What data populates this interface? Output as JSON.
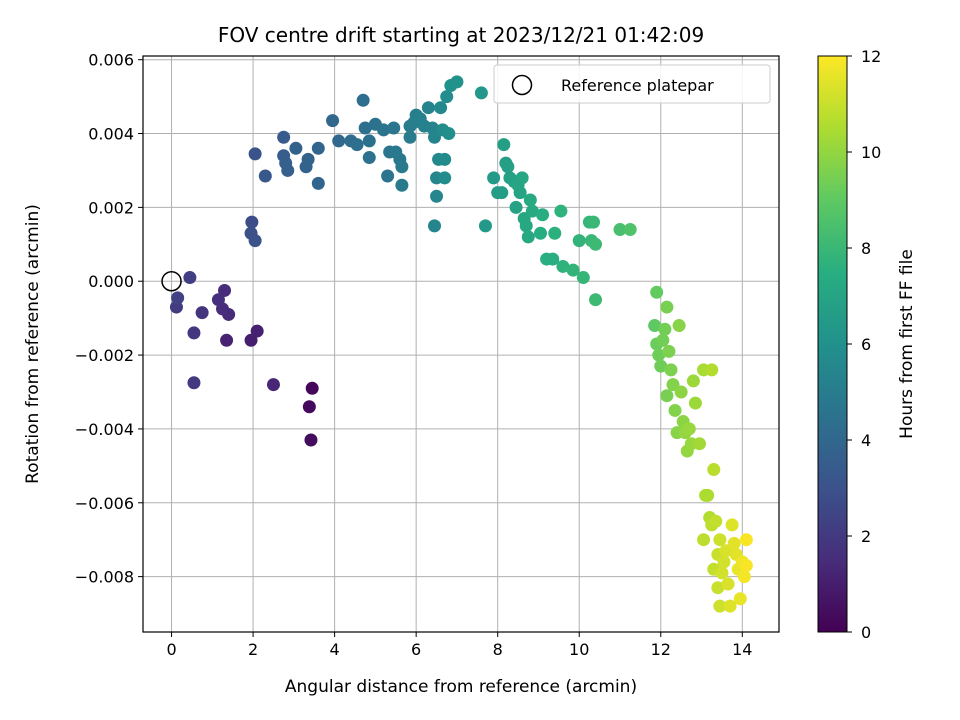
{
  "chart_data": {
    "type": "scatter",
    "title": "FOV centre drift starting at 2023/12/21 01:42:09",
    "xlabel": "Angular distance from reference (arcmin)",
    "ylabel": "Rotation from reference (arcmin)",
    "xlim": [
      -0.7,
      14.9
    ],
    "ylim": [
      -0.0095,
      0.0061
    ],
    "xticks": [
      0,
      2,
      4,
      6,
      8,
      10,
      12,
      14
    ],
    "xtick_labels": [
      "0",
      "2",
      "4",
      "6",
      "8",
      "10",
      "12",
      "14"
    ],
    "yticks": [
      0.006,
      0.004,
      0.002,
      0.0,
      -0.002,
      -0.004,
      -0.006,
      -0.008
    ],
    "ytick_labels": [
      "0.006",
      "0.004",
      "0.002",
      "0.000",
      "−0.002",
      "−0.004",
      "−0.006",
      "−0.008"
    ],
    "grid": true,
    "legend": {
      "placement": "upper right",
      "entries": [
        "Reference platepar"
      ]
    },
    "reference_point": {
      "x": 0,
      "y": 0
    },
    "colorbar": {
      "label": "Hours from first FF file",
      "range": [
        0,
        12
      ],
      "ticks": [
        0,
        2,
        4,
        6,
        8,
        10,
        12
      ],
      "tick_labels": [
        "0",
        "2",
        "4",
        "6",
        "8",
        "10",
        "12"
      ],
      "colormap": "viridis"
    },
    "series": [
      {
        "marker": "filled circle colored by hours",
        "points": [
          {
            "x": 3.45,
            "y": -0.0029,
            "c": 0.2
          },
          {
            "x": 3.38,
            "y": -0.0034,
            "c": 0.3
          },
          {
            "x": 3.42,
            "y": -0.0043,
            "c": 0.4
          },
          {
            "x": 1.95,
            "y": -0.0016,
            "c": 1.0
          },
          {
            "x": 2.1,
            "y": -0.00135,
            "c": 1.1
          },
          {
            "x": 1.35,
            "y": -0.0016,
            "c": 1.2
          },
          {
            "x": 2.5,
            "y": -0.0028,
            "c": 1.3
          },
          {
            "x": 1.4,
            "y": -0.0009,
            "c": 1.4
          },
          {
            "x": 1.25,
            "y": -0.00075,
            "c": 1.5
          },
          {
            "x": 1.15,
            "y": -0.0005,
            "c": 1.6
          },
          {
            "x": 1.3,
            "y": -0.00025,
            "c": 1.5
          },
          {
            "x": 0.75,
            "y": -0.00085,
            "c": 1.8
          },
          {
            "x": 0.55,
            "y": -0.0014,
            "c": 1.9
          },
          {
            "x": 0.55,
            "y": -0.00275,
            "c": 2.0
          },
          {
            "x": 0.45,
            "y": 0.0001,
            "c": 2.2
          },
          {
            "x": 0.15,
            "y": -0.00045,
            "c": 2.3
          },
          {
            "x": 0.12,
            "y": -0.0007,
            "c": 2.1
          },
          {
            "x": 1.97,
            "y": 0.0016,
            "c": 2.8
          },
          {
            "x": 1.95,
            "y": 0.0013,
            "c": 2.9
          },
          {
            "x": 2.05,
            "y": 0.0011,
            "c": 3.0
          },
          {
            "x": 2.05,
            "y": 0.00345,
            "c": 3.1
          },
          {
            "x": 2.3,
            "y": 0.00285,
            "c": 3.3
          },
          {
            "x": 2.75,
            "y": 0.0039,
            "c": 3.4
          },
          {
            "x": 2.75,
            "y": 0.0034,
            "c": 3.5
          },
          {
            "x": 2.8,
            "y": 0.0032,
            "c": 3.6
          },
          {
            "x": 2.85,
            "y": 0.003,
            "c": 3.6
          },
          {
            "x": 3.05,
            "y": 0.0036,
            "c": 3.7
          },
          {
            "x": 3.3,
            "y": 0.0031,
            "c": 3.8
          },
          {
            "x": 3.35,
            "y": 0.0033,
            "c": 3.8
          },
          {
            "x": 3.6,
            "y": 0.0036,
            "c": 3.9
          },
          {
            "x": 3.6,
            "y": 0.00265,
            "c": 3.9
          },
          {
            "x": 3.95,
            "y": 0.00435,
            "c": 4.0
          },
          {
            "x": 4.1,
            "y": 0.0038,
            "c": 4.1
          },
          {
            "x": 4.4,
            "y": 0.0038,
            "c": 4.2
          },
          {
            "x": 4.55,
            "y": 0.0037,
            "c": 4.3
          },
          {
            "x": 4.7,
            "y": 0.0049,
            "c": 4.3
          },
          {
            "x": 4.75,
            "y": 0.00415,
            "c": 4.4
          },
          {
            "x": 4.85,
            "y": 0.0038,
            "c": 4.4
          },
          {
            "x": 4.85,
            "y": 0.00335,
            "c": 4.5
          },
          {
            "x": 5.0,
            "y": 0.00425,
            "c": 4.5
          },
          {
            "x": 5.2,
            "y": 0.0041,
            "c": 4.6
          },
          {
            "x": 5.3,
            "y": 0.00285,
            "c": 4.6
          },
          {
            "x": 5.35,
            "y": 0.0035,
            "c": 4.7
          },
          {
            "x": 5.45,
            "y": 0.00415,
            "c": 4.7
          },
          {
            "x": 5.5,
            "y": 0.0035,
            "c": 4.8
          },
          {
            "x": 5.6,
            "y": 0.0033,
            "c": 4.8
          },
          {
            "x": 5.65,
            "y": 0.0031,
            "c": 4.9
          },
          {
            "x": 5.65,
            "y": 0.0026,
            "c": 4.9
          },
          {
            "x": 5.85,
            "y": 0.0042,
            "c": 5.0
          },
          {
            "x": 5.85,
            "y": 0.0039,
            "c": 5.0
          },
          {
            "x": 5.95,
            "y": 0.0043,
            "c": 5.1
          },
          {
            "x": 6.0,
            "y": 0.0045,
            "c": 5.1
          },
          {
            "x": 6.1,
            "y": 0.0044,
            "c": 5.2
          },
          {
            "x": 6.2,
            "y": 0.0042,
            "c": 5.2
          },
          {
            "x": 6.3,
            "y": 0.0047,
            "c": 5.3
          },
          {
            "x": 6.4,
            "y": 0.00415,
            "c": 5.3
          },
          {
            "x": 6.45,
            "y": 0.0039,
            "c": 5.4
          },
          {
            "x": 6.45,
            "y": 0.0015,
            "c": 5.4
          },
          {
            "x": 6.5,
            "y": 0.0028,
            "c": 5.5
          },
          {
            "x": 6.5,
            "y": 0.0023,
            "c": 5.5
          },
          {
            "x": 6.55,
            "y": 0.0033,
            "c": 5.6
          },
          {
            "x": 6.6,
            "y": 0.0047,
            "c": 5.6
          },
          {
            "x": 6.65,
            "y": 0.0041,
            "c": 5.7
          },
          {
            "x": 6.7,
            "y": 0.0033,
            "c": 5.7
          },
          {
            "x": 6.7,
            "y": 0.0028,
            "c": 5.8
          },
          {
            "x": 6.75,
            "y": 0.005,
            "c": 5.8
          },
          {
            "x": 6.8,
            "y": 0.004,
            "c": 5.9
          },
          {
            "x": 6.85,
            "y": 0.0053,
            "c": 6.0
          },
          {
            "x": 7.0,
            "y": 0.0054,
            "c": 6.1
          },
          {
            "x": 7.6,
            "y": 0.0051,
            "c": 6.3
          },
          {
            "x": 7.7,
            "y": 0.0015,
            "c": 6.4
          },
          {
            "x": 7.9,
            "y": 0.0028,
            "c": 6.5
          },
          {
            "x": 8.0,
            "y": 0.0024,
            "c": 6.6
          },
          {
            "x": 8.1,
            "y": 0.0024,
            "c": 6.6
          },
          {
            "x": 8.15,
            "y": 0.0037,
            "c": 6.7
          },
          {
            "x": 8.2,
            "y": 0.0032,
            "c": 6.7
          },
          {
            "x": 8.25,
            "y": 0.0031,
            "c": 6.8
          },
          {
            "x": 8.3,
            "y": 0.0028,
            "c": 6.8
          },
          {
            "x": 8.4,
            "y": 0.0027,
            "c": 6.9
          },
          {
            "x": 8.45,
            "y": 0.002,
            "c": 6.9
          },
          {
            "x": 8.5,
            "y": 0.0026,
            "c": 7.0
          },
          {
            "x": 8.55,
            "y": 0.0024,
            "c": 7.0
          },
          {
            "x": 8.6,
            "y": 0.0028,
            "c": 7.1
          },
          {
            "x": 8.65,
            "y": 0.0017,
            "c": 7.1
          },
          {
            "x": 8.7,
            "y": 0.0015,
            "c": 7.2
          },
          {
            "x": 8.75,
            "y": 0.0012,
            "c": 7.2
          },
          {
            "x": 8.8,
            "y": 0.0022,
            "c": 7.3
          },
          {
            "x": 8.85,
            "y": 0.0019,
            "c": 7.3
          },
          {
            "x": 9.05,
            "y": 0.0013,
            "c": 7.4
          },
          {
            "x": 9.1,
            "y": 0.0018,
            "c": 7.4
          },
          {
            "x": 9.2,
            "y": 0.0006,
            "c": 7.5
          },
          {
            "x": 9.35,
            "y": 0.0006,
            "c": 7.5
          },
          {
            "x": 9.4,
            "y": 0.0013,
            "c": 7.6
          },
          {
            "x": 9.55,
            "y": 0.0019,
            "c": 7.7
          },
          {
            "x": 9.6,
            "y": 0.0004,
            "c": 7.7
          },
          {
            "x": 9.85,
            "y": 0.0003,
            "c": 7.8
          },
          {
            "x": 10.0,
            "y": 0.0011,
            "c": 7.8
          },
          {
            "x": 10.1,
            "y": 0.0001,
            "c": 7.9
          },
          {
            "x": 10.25,
            "y": 0.0016,
            "c": 7.9
          },
          {
            "x": 10.3,
            "y": 0.0011,
            "c": 8.0
          },
          {
            "x": 10.35,
            "y": 0.0016,
            "c": 8.0
          },
          {
            "x": 10.4,
            "y": 0.001,
            "c": 8.1
          },
          {
            "x": 10.4,
            "y": -0.0005,
            "c": 8.1
          },
          {
            "x": 11.0,
            "y": 0.0014,
            "c": 8.4
          },
          {
            "x": 11.25,
            "y": 0.0014,
            "c": 8.6
          },
          {
            "x": 11.85,
            "y": -0.0012,
            "c": 9.0
          },
          {
            "x": 11.9,
            "y": -0.0003,
            "c": 9.1
          },
          {
            "x": 11.9,
            "y": -0.0017,
            "c": 9.2
          },
          {
            "x": 11.95,
            "y": -0.002,
            "c": 9.3
          },
          {
            "x": 12.0,
            "y": -0.0023,
            "c": 9.3
          },
          {
            "x": 12.05,
            "y": -0.0016,
            "c": 9.4
          },
          {
            "x": 12.1,
            "y": -0.0013,
            "c": 9.4
          },
          {
            "x": 12.15,
            "y": -0.0007,
            "c": 9.5
          },
          {
            "x": 12.15,
            "y": -0.0031,
            "c": 9.5
          },
          {
            "x": 12.2,
            "y": -0.0019,
            "c": 9.6
          },
          {
            "x": 12.25,
            "y": -0.0024,
            "c": 9.6
          },
          {
            "x": 12.3,
            "y": -0.0028,
            "c": 9.7
          },
          {
            "x": 12.35,
            "y": -0.0035,
            "c": 9.7
          },
          {
            "x": 12.4,
            "y": -0.0041,
            "c": 9.8
          },
          {
            "x": 12.45,
            "y": -0.0012,
            "c": 9.8
          },
          {
            "x": 12.5,
            "y": -0.003,
            "c": 9.9
          },
          {
            "x": 12.55,
            "y": -0.0038,
            "c": 9.9
          },
          {
            "x": 12.6,
            "y": -0.0041,
            "c": 10.0
          },
          {
            "x": 12.65,
            "y": -0.0046,
            "c": 10.0
          },
          {
            "x": 12.7,
            "y": -0.004,
            "c": 10.1
          },
          {
            "x": 12.75,
            "y": -0.0044,
            "c": 10.1
          },
          {
            "x": 12.8,
            "y": -0.0027,
            "c": 10.2
          },
          {
            "x": 12.85,
            "y": -0.0033,
            "c": 10.2
          },
          {
            "x": 12.95,
            "y": -0.0044,
            "c": 10.3
          },
          {
            "x": 13.05,
            "y": -0.0024,
            "c": 10.4
          },
          {
            "x": 13.1,
            "y": -0.0058,
            "c": 10.5
          },
          {
            "x": 13.15,
            "y": -0.0058,
            "c": 10.5
          },
          {
            "x": 13.2,
            "y": -0.0064,
            "c": 10.6
          },
          {
            "x": 13.25,
            "y": -0.0024,
            "c": 10.6
          },
          {
            "x": 13.3,
            "y": -0.0051,
            "c": 10.7
          },
          {
            "x": 13.05,
            "y": -0.007,
            "c": 10.8
          },
          {
            "x": 13.25,
            "y": -0.0066,
            "c": 10.8
          },
          {
            "x": 13.3,
            "y": -0.0078,
            "c": 10.9
          },
          {
            "x": 13.35,
            "y": -0.0065,
            "c": 10.9
          },
          {
            "x": 13.4,
            "y": -0.0074,
            "c": 11.0
          },
          {
            "x": 13.4,
            "y": -0.0083,
            "c": 11.0
          },
          {
            "x": 13.45,
            "y": -0.007,
            "c": 11.1
          },
          {
            "x": 13.45,
            "y": -0.0088,
            "c": 11.1
          },
          {
            "x": 13.5,
            "y": -0.0079,
            "c": 11.2
          },
          {
            "x": 13.55,
            "y": -0.0076,
            "c": 11.2
          },
          {
            "x": 13.6,
            "y": -0.0073,
            "c": 11.3
          },
          {
            "x": 13.65,
            "y": -0.0082,
            "c": 11.3
          },
          {
            "x": 13.7,
            "y": -0.0088,
            "c": 11.4
          },
          {
            "x": 13.75,
            "y": -0.0066,
            "c": 11.4
          },
          {
            "x": 13.8,
            "y": -0.0071,
            "c": 11.5
          },
          {
            "x": 13.85,
            "y": -0.0074,
            "c": 11.5
          },
          {
            "x": 13.9,
            "y": -0.0078,
            "c": 11.6
          },
          {
            "x": 13.95,
            "y": -0.0086,
            "c": 11.6
          },
          {
            "x": 14.0,
            "y": -0.0076,
            "c": 11.7
          },
          {
            "x": 14.05,
            "y": -0.008,
            "c": 11.8
          },
          {
            "x": 14.1,
            "y": -0.007,
            "c": 11.9
          },
          {
            "x": 14.1,
            "y": -0.0077,
            "c": 11.9
          }
        ]
      }
    ]
  }
}
